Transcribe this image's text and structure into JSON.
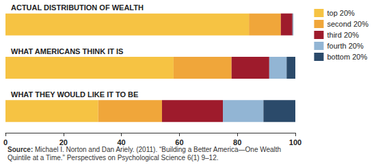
{
  "chart_data": {
    "type": "bar",
    "orientation": "horizontal",
    "stacked": true,
    "grid": false,
    "legend": "right",
    "categories": [
      "ACTUAL DISTRIBUTION OF WEALTH",
      "WHAT AMERICANS THINK IT IS",
      "WHAT THEY WOULD LIKE IT TO BE"
    ],
    "series": [
      {
        "name": "top 20%",
        "color": "#f6c343",
        "values": [
          84,
          58,
          32
        ]
      },
      {
        "name": "second 20%",
        "color": "#f0a63a",
        "values": [
          11,
          20,
          22
        ]
      },
      {
        "name": "third 20%",
        "color": "#9e1b2c",
        "values": [
          4,
          13,
          21
        ]
      },
      {
        "name": "fourth 20%",
        "color": "#92b5d4",
        "values": [
          0.2,
          6,
          14
        ]
      },
      {
        "name": "bottom 20%",
        "color": "#2b4a6a",
        "values": [
          0.1,
          3,
          11
        ]
      }
    ],
    "xlim": [
      0,
      100
    ],
    "xticks": [
      0,
      20,
      40,
      60,
      80,
      100
    ],
    "source": {
      "label": "Source:",
      "lines": [
        "Michael I. Norton and Dan Ariely. (2011). “Building a Better America—One Wealth",
        "Quintile at a Time.” Perspectives on Psychological Science 6(1) 9–12."
      ]
    }
  }
}
